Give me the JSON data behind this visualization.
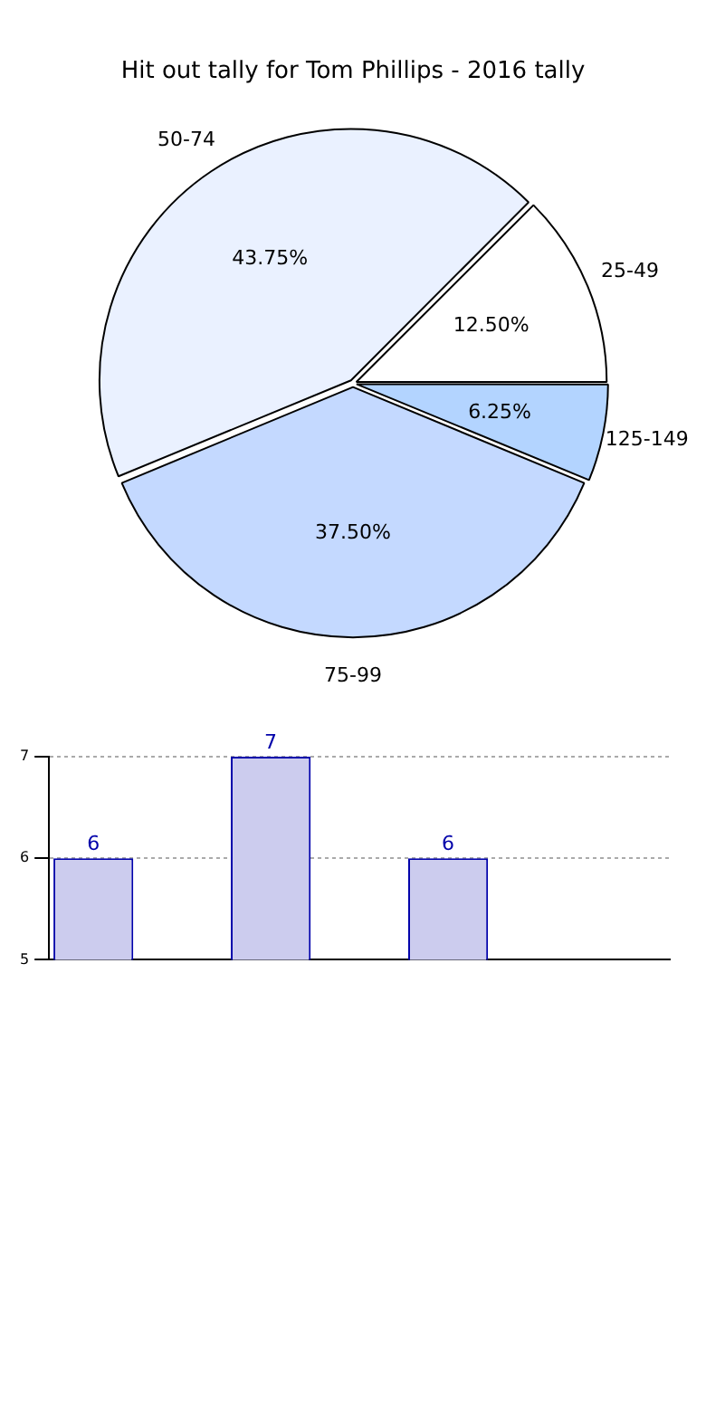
{
  "chart_data": [
    {
      "type": "pie",
      "title": "Hit out tally for Tom Phillips - 2016 tally",
      "categories": [
        "25-49",
        "125-149",
        "75-99",
        "50-74"
      ],
      "values": [
        12.5,
        6.25,
        37.5,
        43.75
      ],
      "colors": [
        "#ffffff",
        "#b3d4ff",
        "#c4d9ff",
        "#eaf1ff"
      ],
      "value_labels": [
        "12.50%",
        "6.25%",
        "37.50%",
        "43.75%"
      ],
      "legend": false
    },
    {
      "type": "bar",
      "categories": [
        null,
        null,
        null,
        null,
        null,
        null,
        null
      ],
      "values": [
        6,
        null,
        7,
        null,
        6,
        null,
        null
      ],
      "color": "#ccccee",
      "ylim": [
        5,
        7
      ],
      "yticks": [
        5,
        6,
        7
      ],
      "grid": "y",
      "tick_labels": "y",
      "data_labels": true,
      "legend": false
    }
  ]
}
